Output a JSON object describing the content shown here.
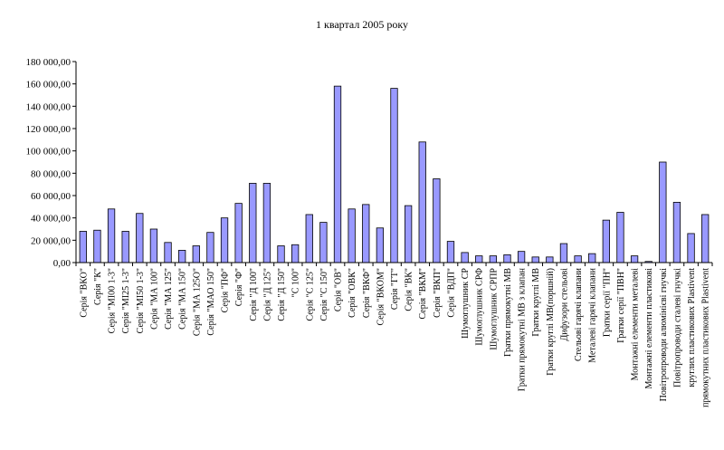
{
  "chart_data": {
    "type": "bar",
    "title": "1 квартал 2005 року",
    "xlabel": "",
    "ylabel": "",
    "ylim": [
      0,
      180000
    ],
    "yticks": [
      "0,00",
      "20 000,00",
      "40 000,00",
      "60 000,00",
      "80 000,00",
      "100 000,00",
      "120 000,00",
      "140 000,00",
      "160 000,00",
      "180 000,00"
    ],
    "grid": false,
    "legend": "none",
    "bar_color": "#9999ff",
    "categories": [
      "Серія \"ВКО\"",
      "Серія \"К\"",
      "Серія \"МІ00 1-3\"",
      "Серія \"МІ25 1-3\"",
      "Серія \"МІ50 1-3\"",
      "Серія \"МА 100\"",
      "Серія \"МА 125\"",
      "Серія \"МА 150\"",
      "Серія \"МА 125О\"",
      "Серія \"МАО 150\"",
      "Серія \"ПФ\"",
      "Серія \"Ф\"",
      "Серія \"Д 100\"",
      "Серія \"Д 125\"",
      "Серія \"Д 150\"",
      "\"С 100\"",
      "Серія \"С 125\"",
      "Серія \"С 150\"",
      "Серія \"ОВ\"",
      "Серія \"ОВК\"",
      "Серія \"ВКФ\"",
      "Серія \"ВКОМ\"",
      "Серія \"ГТ\"",
      "Серія \"ВК\"",
      "Серія \"ВКМ\"",
      "Серія \"ВКП\"",
      "Серія \"ВДП\"",
      "Шумоглушник СР",
      "Шумоглушник СРФ",
      "Шумоглушник СРПР",
      "Гратки прямокутні МВ",
      "Гратки прямокутні МВ з клапан",
      "Гратки круглі МВ",
      "Гратки круглі МВ(поршній)",
      "Дифузори стельові",
      "Стельові гарячі клапани",
      "Металеві гарячі клапани",
      "Гратки серії \"ПН\"",
      "Гратки серії \"ПВН\"",
      "Монтажні елементи металеві",
      "Монтажні елементи пластикові",
      "Повітропроводи алюмінієві гнучкі",
      "Повітропроводи сталеві гнучкі",
      "круглих пластикових Plastivent",
      "прямокутних пластикових Plastivent"
    ],
    "values": [
      28000,
      29000,
      48000,
      28000,
      44000,
      30000,
      18000,
      11000,
      15000,
      27000,
      40000,
      53000,
      71000,
      71000,
      15000,
      16000,
      43000,
      36000,
      158000,
      48000,
      52000,
      31000,
      156000,
      51000,
      108000,
      75000,
      19000,
      9000,
      6000,
      6000,
      7000,
      10000,
      5000,
      5000,
      17000,
      6000,
      8000,
      38000,
      45000,
      6000,
      1000,
      90000,
      54000,
      26000,
      43000
    ]
  }
}
